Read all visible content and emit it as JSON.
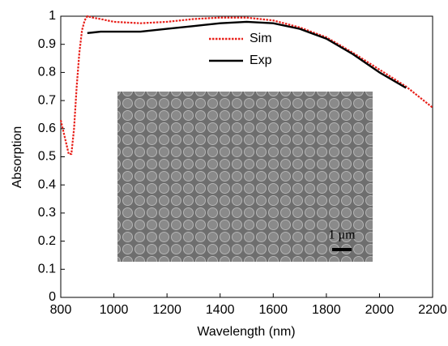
{
  "chart_data": {
    "type": "line",
    "x_label": "Wavelength (nm)",
    "y_label": "Absorption",
    "x": [
      800,
      810,
      820,
      830,
      840,
      850,
      860,
      870,
      880,
      890,
      900,
      920,
      950,
      1000,
      1100,
      1200,
      1300,
      1400,
      1500,
      1600,
      1700,
      1800,
      1900,
      2000,
      2100,
      2200
    ],
    "series": [
      {
        "name": "Sim",
        "color": "#e8211b",
        "dash": "dotted",
        "values": [
          0.63,
          0.59,
          0.55,
          0.51,
          0.51,
          0.6,
          0.75,
          0.87,
          0.95,
          0.985,
          1.0,
          0.995,
          0.99,
          0.98,
          0.975,
          0.98,
          0.99,
          0.995,
          0.995,
          0.985,
          0.96,
          0.925,
          0.87,
          0.81,
          0.75,
          0.675
        ]
      },
      {
        "name": "Exp",
        "color": "#000000",
        "dash": "solid",
        "values": [
          null,
          null,
          null,
          null,
          null,
          null,
          null,
          null,
          null,
          null,
          0.94,
          0.942,
          0.945,
          0.945,
          0.945,
          0.955,
          0.965,
          0.975,
          0.98,
          0.975,
          0.955,
          0.92,
          0.865,
          0.8,
          0.745,
          null
        ]
      }
    ],
    "xlim": [
      800,
      2200
    ],
    "xticks": [
      800,
      1000,
      1200,
      1400,
      1600,
      1800,
      2000,
      2200
    ],
    "ylim": [
      0,
      1
    ],
    "yticks": [
      0,
      0.1,
      0.2,
      0.3,
      0.4,
      0.5,
      0.6,
      0.7,
      0.8,
      0.9,
      1
    ],
    "grid": false,
    "inset_label": "1 μm"
  }
}
